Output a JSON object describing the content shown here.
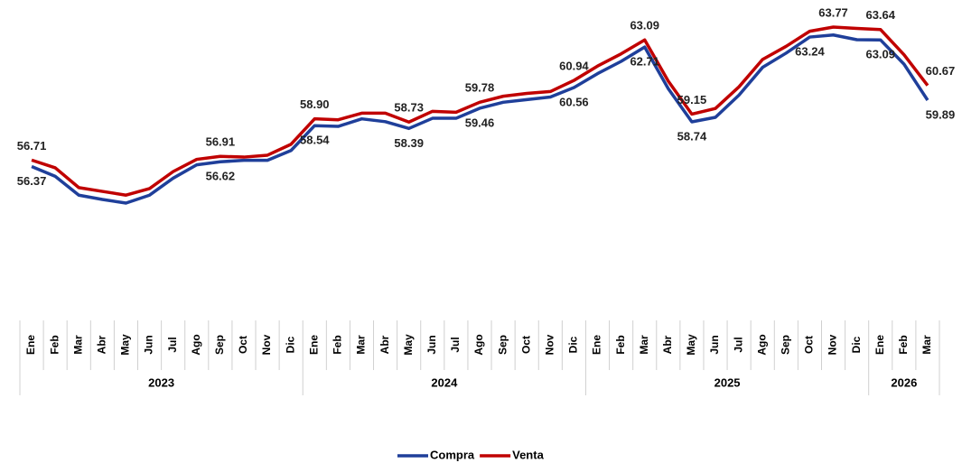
{
  "chart_data": {
    "type": "line",
    "groups": [
      {
        "label": "2023",
        "categories": [
          "Ene",
          "Feb",
          "Mar",
          "Abr",
          "May",
          "Jun",
          "Jul",
          "Ago",
          "Sep",
          "Oct",
          "Nov",
          "Dic"
        ]
      },
      {
        "label": "2024",
        "categories": [
          "Ene",
          "Feb",
          "Mar",
          "Abr",
          "May",
          "Jun",
          "Jul",
          "Ago",
          "Sep",
          "Oct",
          "Nov",
          "Dic"
        ]
      },
      {
        "label": "2025",
        "categories": [
          "Ene",
          "Feb",
          "Mar",
          "Abr",
          "May",
          "Jun",
          "Jul",
          "Ago",
          "Sep",
          "Oct",
          "Nov",
          "Dic"
        ]
      },
      {
        "label": "2026",
        "categories": [
          "Ene",
          "Feb",
          "Mar"
        ]
      }
    ],
    "series": [
      {
        "name": "Compra",
        "color": "#1f3f9a",
        "values": [
          56.37,
          55.85,
          54.85,
          54.62,
          54.43,
          54.85,
          55.75,
          56.46,
          56.62,
          56.7,
          56.7,
          57.22,
          58.54,
          58.5,
          58.9,
          58.75,
          58.39,
          58.93,
          58.93,
          59.46,
          59.78,
          59.92,
          60.06,
          60.56,
          61.3,
          61.95,
          62.71,
          60.5,
          58.74,
          58.98,
          60.16,
          61.63,
          62.39,
          63.24,
          63.35,
          63.1,
          63.09,
          61.8,
          59.89
        ],
        "value_labels": [
          "56.37",
          null,
          null,
          null,
          null,
          null,
          null,
          null,
          "56.62",
          null,
          null,
          null,
          "58.54",
          null,
          null,
          null,
          "58.39",
          null,
          null,
          "59.46",
          null,
          null,
          null,
          "60.56",
          null,
          null,
          "62.71",
          null,
          "58.74",
          null,
          null,
          null,
          null,
          "63.24",
          null,
          null,
          "63.09",
          null,
          "59.89"
        ]
      },
      {
        "name": "Venta",
        "color": "#c00000",
        "values": [
          56.71,
          56.3,
          55.25,
          55.05,
          54.85,
          55.2,
          56.1,
          56.75,
          56.91,
          56.87,
          56.97,
          57.55,
          58.9,
          58.85,
          59.2,
          59.2,
          58.73,
          59.3,
          59.25,
          59.78,
          60.1,
          60.25,
          60.35,
          60.94,
          61.7,
          62.35,
          63.09,
          60.9,
          59.15,
          59.45,
          60.6,
          62.05,
          62.75,
          63.55,
          63.77,
          63.7,
          63.64,
          62.3,
          60.67
        ],
        "value_labels": [
          "56.71",
          null,
          null,
          null,
          null,
          null,
          null,
          null,
          "56.91",
          null,
          null,
          null,
          "58.90",
          null,
          null,
          null,
          "58.73",
          null,
          null,
          "59.78",
          null,
          null,
          null,
          "60.94",
          null,
          null,
          "63.09",
          null,
          "59.15",
          null,
          null,
          null,
          null,
          null,
          "63.77",
          null,
          "63.64",
          null,
          "60.67"
        ]
      }
    ]
  }
}
